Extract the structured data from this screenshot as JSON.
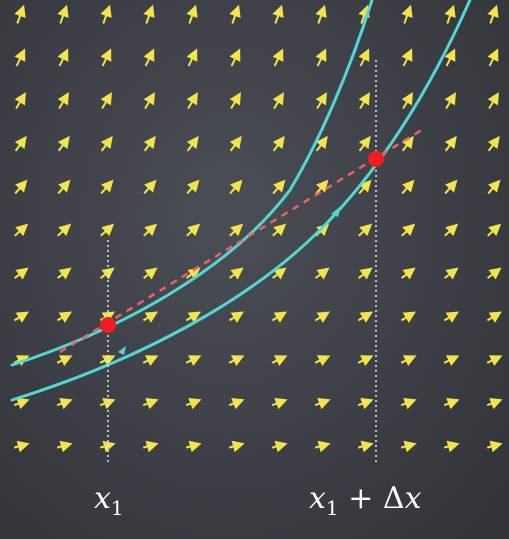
{
  "labels": {
    "x1_var": "x",
    "x1_sub": "1",
    "x1dx_var": "x",
    "x1dx_sub": "1",
    "x1dx_plus": "+",
    "x1dx_delta": "Δ",
    "x1dx_x": "x"
  },
  "colors": {
    "background": "#3c3f45",
    "field_arrow": "#f2e44a",
    "curve": "#52d6d6",
    "point": "#f01e1e",
    "secant": "#f06060",
    "guide": "#e8e8e8"
  },
  "icons": {
    "field_arrow": "slope-arrow-icon",
    "flow_arrow": "flow-arrow-icon"
  }
}
